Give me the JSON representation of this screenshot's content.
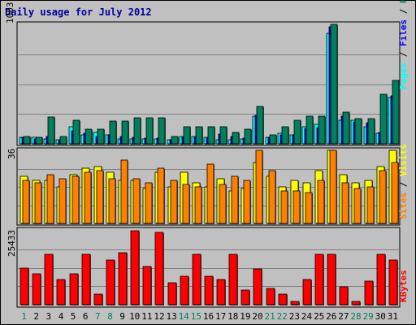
{
  "chart_data": [
    {
      "type": "bar",
      "title": "Daily usage for July 2012",
      "categories": [
        "1",
        "2",
        "3",
        "4",
        "5",
        "6",
        "7",
        "8",
        "9",
        "10",
        "11",
        "12",
        "13",
        "14",
        "15",
        "16",
        "17",
        "18",
        "19",
        "20",
        "21",
        "22",
        "23",
        "24",
        "25",
        "26",
        "27",
        "28",
        "29",
        "30",
        "31"
      ],
      "weekend_days": [
        "1",
        "7",
        "8",
        "14",
        "15",
        "21",
        "22",
        "28",
        "29"
      ],
      "ymax_label": "1003",
      "ylim": [
        0,
        1003
      ],
      "ylabel_parts": [
        "Pages",
        "Files",
        "Hits"
      ],
      "ylabel_separator": " / ",
      "series": [
        {
          "name": "Hits",
          "color": "#00805c",
          "values": [
            64,
            55,
            225,
            64,
            201,
            120,
            120,
            193,
            193,
            217,
            217,
            217,
            64,
            145,
            145,
            145,
            145,
            97,
            120,
            313,
            72,
            145,
            201,
            233,
            233,
            1003,
            265,
            209,
            209,
            418,
            530
          ]
        },
        {
          "name": "Files",
          "color": "#0000ff",
          "values": [
            56,
            40,
            64,
            24,
            112,
            88,
            64,
            72,
            64,
            56,
            48,
            48,
            32,
            56,
            56,
            48,
            80,
            64,
            48,
            241,
            56,
            72,
            72,
            129,
            137,
            981,
            233,
            185,
            177,
            96,
            402
          ]
        },
        {
          "name": "Pages",
          "color": "#00ffff",
          "values": [
            56,
            56,
            40,
            32,
            145,
            72,
            96,
            72,
            40,
            40,
            40,
            40,
            32,
            64,
            64,
            56,
            32,
            32,
            40,
            233,
            56,
            88,
            72,
            145,
            161,
            925,
            201,
            201,
            145,
            88,
            386
          ]
        }
      ]
    },
    {
      "type": "bar",
      "ymax_label": "36",
      "ylim": [
        0,
        36
      ],
      "ylabel_parts": [
        "Sites",
        "Visits"
      ],
      "ylabel_separator": " / ",
      "series": [
        {
          "name": "Visits",
          "color": "#ffff00",
          "values": [
            23,
            21,
            21,
            18,
            24,
            27,
            28,
            25,
            21,
            21,
            17,
            25,
            18,
            25,
            20,
            18,
            22,
            16,
            17,
            30,
            23,
            18,
            21,
            20,
            26,
            36,
            24,
            20,
            21,
            28,
            36
          ]
        },
        {
          "name": "Sites",
          "color": "#ff8000",
          "values": [
            21,
            20,
            24,
            22,
            23,
            25,
            26,
            22,
            31,
            22,
            20,
            27,
            21,
            19,
            18,
            29,
            19,
            23,
            21,
            36,
            26,
            16,
            16,
            15,
            21,
            36,
            20,
            17,
            18,
            26,
            30
          ]
        }
      ]
    },
    {
      "type": "bar",
      "ymax_label": "25433",
      "ylim": [
        0,
        25433
      ],
      "ylabel_parts": [
        "KBytes"
      ],
      "ylabel_separator": "",
      "series": [
        {
          "name": "KBytes",
          "color": "#ff0000",
          "values": [
            12715,
            10679,
            17292,
            8643,
            10679,
            17292,
            3561,
            15261,
            17801,
            25433,
            13224,
            24924,
            7626,
            9662,
            17292,
            9662,
            8643,
            17292,
            5088,
            12207,
            5597,
            3561,
            1017,
            8643,
            17292,
            17292,
            6106,
            1017,
            8134,
            17292,
            15261
          ]
        }
      ]
    }
  ]
}
